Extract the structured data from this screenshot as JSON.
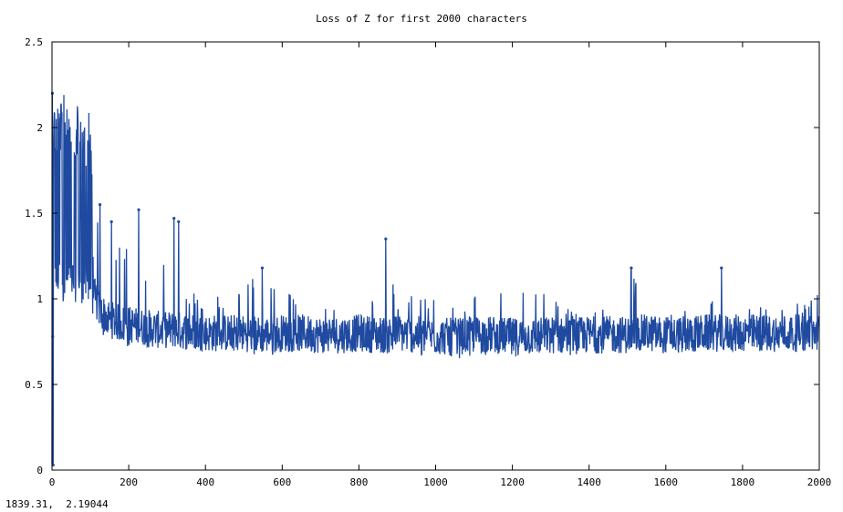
{
  "window": {
    "status_readout": "1839.31,  2.19044"
  },
  "colors": {
    "series": "#1f4aa0",
    "axes": "#000000",
    "background": "#ffffff"
  },
  "chart_data": {
    "type": "line",
    "title": "Loss of Z for first 2000 characters",
    "xlabel": "",
    "ylabel": "",
    "xlim": [
      0,
      2000
    ],
    "ylim": [
      0,
      2.5
    ],
    "x_ticks": [
      "0",
      "200",
      "400",
      "600",
      "800",
      "1000",
      "1200",
      "1400",
      "1600",
      "1800",
      "2000"
    ],
    "y_ticks": [
      "0",
      "0.5",
      "1",
      "1.5",
      "2",
      "2.5"
    ],
    "grid": false,
    "legend": "none",
    "series": [
      {
        "description_of_shape": "single noisy series of per-character loss",
        "x": [
          0,
          2,
          5,
          10,
          20,
          30,
          40,
          50,
          60,
          70,
          80,
          90,
          100,
          110,
          120,
          130,
          140,
          150,
          175,
          200,
          225,
          250,
          275,
          300,
          320,
          330,
          350,
          400,
          450,
          500,
          550,
          600,
          650,
          700,
          750,
          800,
          850,
          870,
          900,
          950,
          1000,
          1050,
          1100,
          1150,
          1200,
          1250,
          1300,
          1350,
          1400,
          1450,
          1500,
          1510,
          1550,
          1600,
          1650,
          1700,
          1745,
          1750,
          1800,
          1850,
          1900,
          1950,
          1980,
          2000
        ],
        "low": [
          0.03,
          0.75,
          0.98,
          0.98,
          0.98,
          0.98,
          0.98,
          0.98,
          0.98,
          0.98,
          0.97,
          0.97,
          0.96,
          0.85,
          0.8,
          0.78,
          0.76,
          0.75,
          0.73,
          0.72,
          0.7,
          0.71,
          0.7,
          0.72,
          0.71,
          0.72,
          0.7,
          0.7,
          0.69,
          0.68,
          0.66,
          0.68,
          0.7,
          0.68,
          0.67,
          0.69,
          0.66,
          0.68,
          0.68,
          0.67,
          0.63,
          0.65,
          0.66,
          0.68,
          0.64,
          0.66,
          0.68,
          0.66,
          0.7,
          0.68,
          0.68,
          0.7,
          0.7,
          0.69,
          0.68,
          0.71,
          0.69,
          0.7,
          0.69,
          0.69,
          0.7,
          0.69,
          0.72,
          0.73
        ],
        "high": [
          2.2,
          2.22,
          2.15,
          2.18,
          2.16,
          2.19,
          2.21,
          2.16,
          2.14,
          2.19,
          2.1,
          2.12,
          2.08,
          1.55,
          1.52,
          1.4,
          1.45,
          1.2,
          1.32,
          1.52,
          1.25,
          1.18,
          1.1,
          1.48,
          1.47,
          1.38,
          1.05,
          1.02,
          1.04,
          1.08,
          1.18,
          1.05,
          1.05,
          0.98,
          1.05,
          0.99,
          1.0,
          1.35,
          1.02,
          1.03,
          1.03,
          0.99,
          1.03,
          1.07,
          1.05,
          1.05,
          1.03,
          0.95,
          0.95,
          0.98,
          1.07,
          1.18,
          0.95,
          0.92,
          0.95,
          0.95,
          1.18,
          0.98,
          1.0,
          0.98,
          0.98,
          0.98,
          1.05,
          1.06
        ],
        "typical": [
          0.5,
          1.45,
          1.6,
          1.55,
          1.55,
          1.58,
          1.6,
          1.55,
          1.52,
          1.55,
          1.5,
          1.48,
          1.45,
          1.02,
          0.95,
          0.92,
          0.9,
          0.88,
          0.86,
          0.85,
          0.84,
          0.83,
          0.82,
          0.82,
          0.82,
          0.82,
          0.81,
          0.8,
          0.8,
          0.8,
          0.79,
          0.8,
          0.8,
          0.79,
          0.79,
          0.8,
          0.79,
          0.79,
          0.8,
          0.79,
          0.78,
          0.78,
          0.79,
          0.79,
          0.78,
          0.78,
          0.79,
          0.78,
          0.79,
          0.79,
          0.79,
          0.8,
          0.8,
          0.79,
          0.79,
          0.8,
          0.8,
          0.8,
          0.8,
          0.8,
          0.8,
          0.8,
          0.8,
          0.8
        ]
      }
    ]
  }
}
